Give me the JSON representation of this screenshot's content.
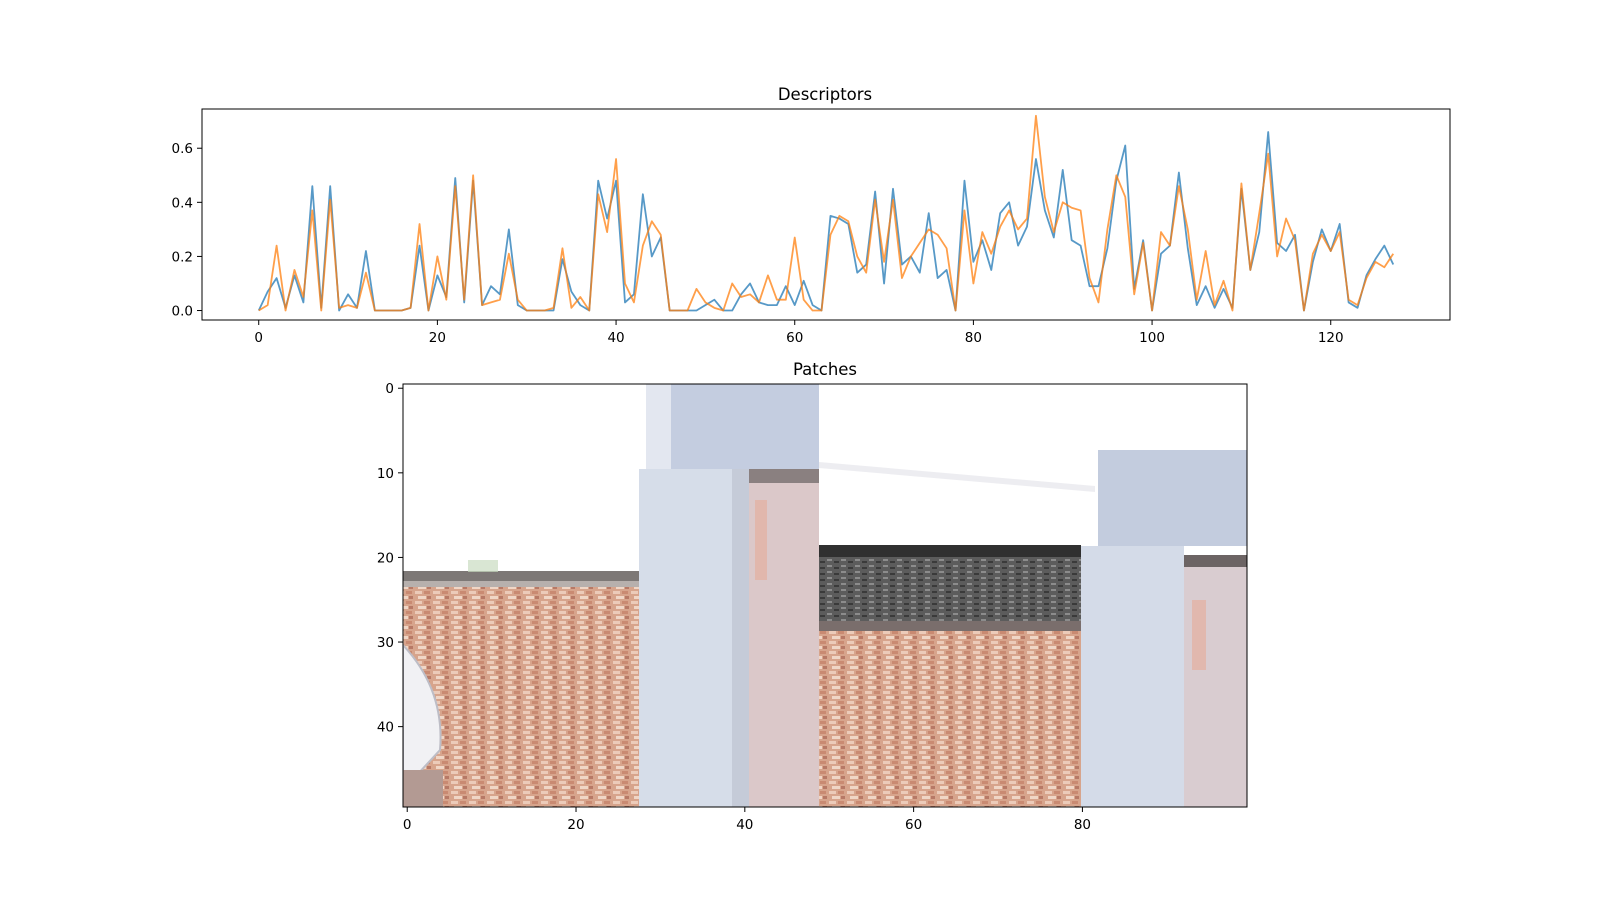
{
  "chart_data": [
    {
      "type": "line",
      "title": "Descriptors",
      "xlabel": "",
      "ylabel": "",
      "xlim": [
        -6.35,
        133.35
      ],
      "ylim": [
        -0.035,
        0.745
      ],
      "xticks": [
        0,
        20,
        40,
        60,
        80,
        100,
        120
      ],
      "yticks": [
        0.0,
        0.2,
        0.4,
        0.6
      ],
      "ytick_labels": [
        "0.0",
        "0.2",
        "0.4",
        "0.6"
      ],
      "grid": false,
      "series": [
        {
          "color": "#1f77b4",
          "values": [
            0.0,
            0.07,
            0.12,
            0.01,
            0.13,
            0.03,
            0.46,
            0.01,
            0.46,
            0.0,
            0.06,
            0.01,
            0.22,
            0.0,
            0.0,
            0.0,
            0.0,
            0.01,
            0.24,
            0.0,
            0.13,
            0.05,
            0.49,
            0.03,
            0.48,
            0.02,
            0.09,
            0.06,
            0.3,
            0.02,
            0.0,
            0.0,
            0.0,
            0.0,
            0.19,
            0.07,
            0.02,
            0.0,
            0.48,
            0.34,
            0.48,
            0.03,
            0.06,
            0.43,
            0.2,
            0.27,
            0.0,
            0.0,
            0.0,
            0.0,
            0.02,
            0.04,
            0.0,
            0.0,
            0.06,
            0.1,
            0.03,
            0.02,
            0.02,
            0.09,
            0.02,
            0.11,
            0.02,
            0.0,
            0.35,
            0.34,
            0.32,
            0.14,
            0.17,
            0.44,
            0.1,
            0.45,
            0.17,
            0.2,
            0.14,
            0.36,
            0.12,
            0.15,
            0.0,
            0.48,
            0.18,
            0.26,
            0.15,
            0.36,
            0.4,
            0.24,
            0.31,
            0.56,
            0.37,
            0.27,
            0.52,
            0.26,
            0.24,
            0.09,
            0.09,
            0.23,
            0.48,
            0.61,
            0.08,
            0.26,
            0.0,
            0.21,
            0.24,
            0.51,
            0.23,
            0.02,
            0.09,
            0.01,
            0.08,
            0.01,
            0.45,
            0.15,
            0.29,
            0.66,
            0.25,
            0.22,
            0.28,
            0.0,
            0.18,
            0.3,
            0.22,
            0.32,
            0.03,
            0.01,
            0.13,
            0.19,
            0.24,
            0.17
          ]
        },
        {
          "color": "#ff7f0e",
          "values": [
            0.0,
            0.02,
            0.24,
            0.0,
            0.15,
            0.05,
            0.37,
            0.0,
            0.41,
            0.01,
            0.02,
            0.01,
            0.14,
            0.0,
            0.0,
            0.0,
            0.0,
            0.01,
            0.32,
            0.0,
            0.2,
            0.04,
            0.46,
            0.04,
            0.5,
            0.02,
            0.03,
            0.04,
            0.21,
            0.04,
            0.0,
            0.0,
            0.0,
            0.01,
            0.23,
            0.01,
            0.05,
            0.0,
            0.43,
            0.29,
            0.56,
            0.1,
            0.03,
            0.24,
            0.33,
            0.28,
            0.0,
            0.0,
            0.0,
            0.08,
            0.03,
            0.01,
            0.0,
            0.1,
            0.05,
            0.06,
            0.03,
            0.13,
            0.04,
            0.04,
            0.27,
            0.04,
            0.0,
            0.0,
            0.28,
            0.35,
            0.33,
            0.2,
            0.14,
            0.41,
            0.18,
            0.41,
            0.12,
            0.2,
            0.25,
            0.3,
            0.28,
            0.23,
            0.0,
            0.37,
            0.1,
            0.29,
            0.21,
            0.31,
            0.37,
            0.3,
            0.34,
            0.72,
            0.42,
            0.29,
            0.4,
            0.38,
            0.37,
            0.12,
            0.03,
            0.3,
            0.5,
            0.42,
            0.06,
            0.25,
            0.0,
            0.29,
            0.24,
            0.46,
            0.3,
            0.04,
            0.22,
            0.02,
            0.11,
            0.0,
            0.47,
            0.15,
            0.36,
            0.58,
            0.2,
            0.34,
            0.26,
            0.0,
            0.21,
            0.28,
            0.22,
            0.29,
            0.04,
            0.02,
            0.12,
            0.18,
            0.16,
            0.21
          ]
        }
      ]
    },
    {
      "type": "image",
      "title": "Patches",
      "xticks": [
        0,
        20,
        40,
        60,
        80
      ],
      "yticks": [
        0,
        10,
        20,
        30,
        40
      ],
      "image_size": [
        100,
        50
      ],
      "grid": false
    }
  ]
}
